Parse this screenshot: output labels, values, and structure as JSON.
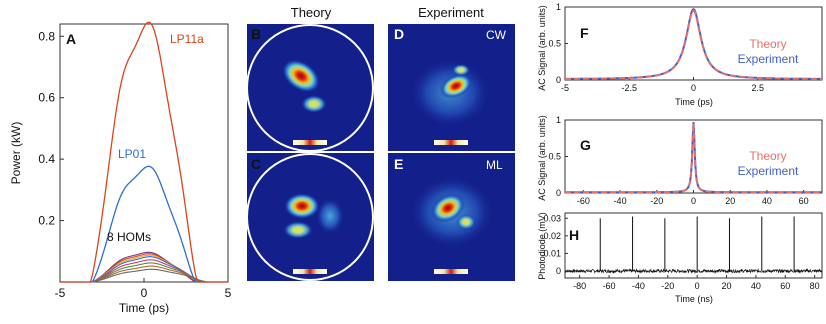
{
  "panelA": {
    "letter": "A",
    "ylabel": "Power (kW)",
    "xlabel": "Time (ps)",
    "labels": {
      "lp11a": "LP11a",
      "lp01": "LP01",
      "hom": "8 HOMs"
    },
    "colors": {
      "lp11a": "#d9441c",
      "lp01": "#2a6fcf"
    }
  },
  "images": {
    "theory_title": "Theory",
    "experiment_title": "Experiment",
    "B": "B",
    "C": "C",
    "D": "D",
    "E": "E",
    "cw": "CW",
    "ml": "ML",
    "background": "#13208c"
  },
  "panelF": {
    "letter": "F",
    "ylabel": "AC Signal (arb. units)",
    "xlabel": "Time (ps)",
    "legend_theory": "Theory",
    "legend_experiment": "Experiment"
  },
  "panelG": {
    "letter": "G",
    "ylabel": "AC Signal (arb. units)",
    "legend_theory": "Theory",
    "legend_experiment": "Experiment"
  },
  "panelH": {
    "letter": "H",
    "ylabel": "Photodiode (mV)",
    "xlabel": "Time (ns)"
  },
  "chart_data": [
    {
      "panel": "A",
      "type": "line",
      "xlabel": "Time (ps)",
      "ylabel": "Power (kW)",
      "xlim": [
        -5,
        5
      ],
      "ylim": [
        0,
        0.84
      ],
      "xticks": [
        -5,
        0,
        5
      ],
      "yticks": [
        0.2,
        0.4,
        0.6,
        0.8
      ],
      "series": [
        {
          "name": "LP11a",
          "peak": 0.83,
          "color": "#d9441c"
        },
        {
          "name": "LP01",
          "peak": 0.37,
          "color": "#2a6fcf"
        },
        {
          "name": "8 HOMs",
          "peaks": [
            0.095,
            0.09,
            0.085,
            0.08,
            0.07,
            0.06,
            0.05,
            0.04
          ]
        }
      ]
    },
    {
      "panel": "F",
      "type": "line",
      "xlabel": "Time (ps)",
      "ylabel": "AC Signal (arb. units)",
      "xlim": [
        -5,
        5
      ],
      "ylim": [
        0,
        1
      ],
      "xticks": [
        -5,
        -2.5,
        0,
        2.5
      ],
      "yticks": [
        0,
        0.5,
        1
      ],
      "series": [
        {
          "name": "Theory",
          "color": "#e8706a"
        },
        {
          "name": "Experiment",
          "color": "#3d5fd1"
        }
      ]
    },
    {
      "panel": "G",
      "type": "line",
      "ylabel": "AC Signal (arb. units)",
      "xlim": [
        -70,
        70
      ],
      "ylim": [
        0,
        1
      ],
      "xticks": [
        -60,
        -40,
        -20,
        0,
        20,
        40,
        60
      ],
      "yticks": [
        0,
        0.5,
        1
      ],
      "series": [
        {
          "name": "Theory",
          "color": "#e8706a"
        },
        {
          "name": "Experiment",
          "color": "#3d5fd1"
        }
      ]
    },
    {
      "panel": "H",
      "type": "line",
      "xlabel": "Time (ns)",
      "ylabel": "Photodiode (mV)",
      "xlim": [
        -90,
        85
      ],
      "ylim": [
        -0.004,
        0.033
      ],
      "xticks": [
        -80,
        -60,
        -40,
        -20,
        0,
        20,
        40,
        60,
        80
      ],
      "yticks": [
        0,
        0.01,
        0.02,
        0.03
      ],
      "pulse_times_ns": [
        -66,
        -44,
        -22,
        0,
        22,
        44,
        66
      ],
      "pulse_heights_mV": [
        0.03,
        0.031,
        0.03,
        0.031,
        0.03,
        0.031,
        0.031
      ]
    }
  ]
}
